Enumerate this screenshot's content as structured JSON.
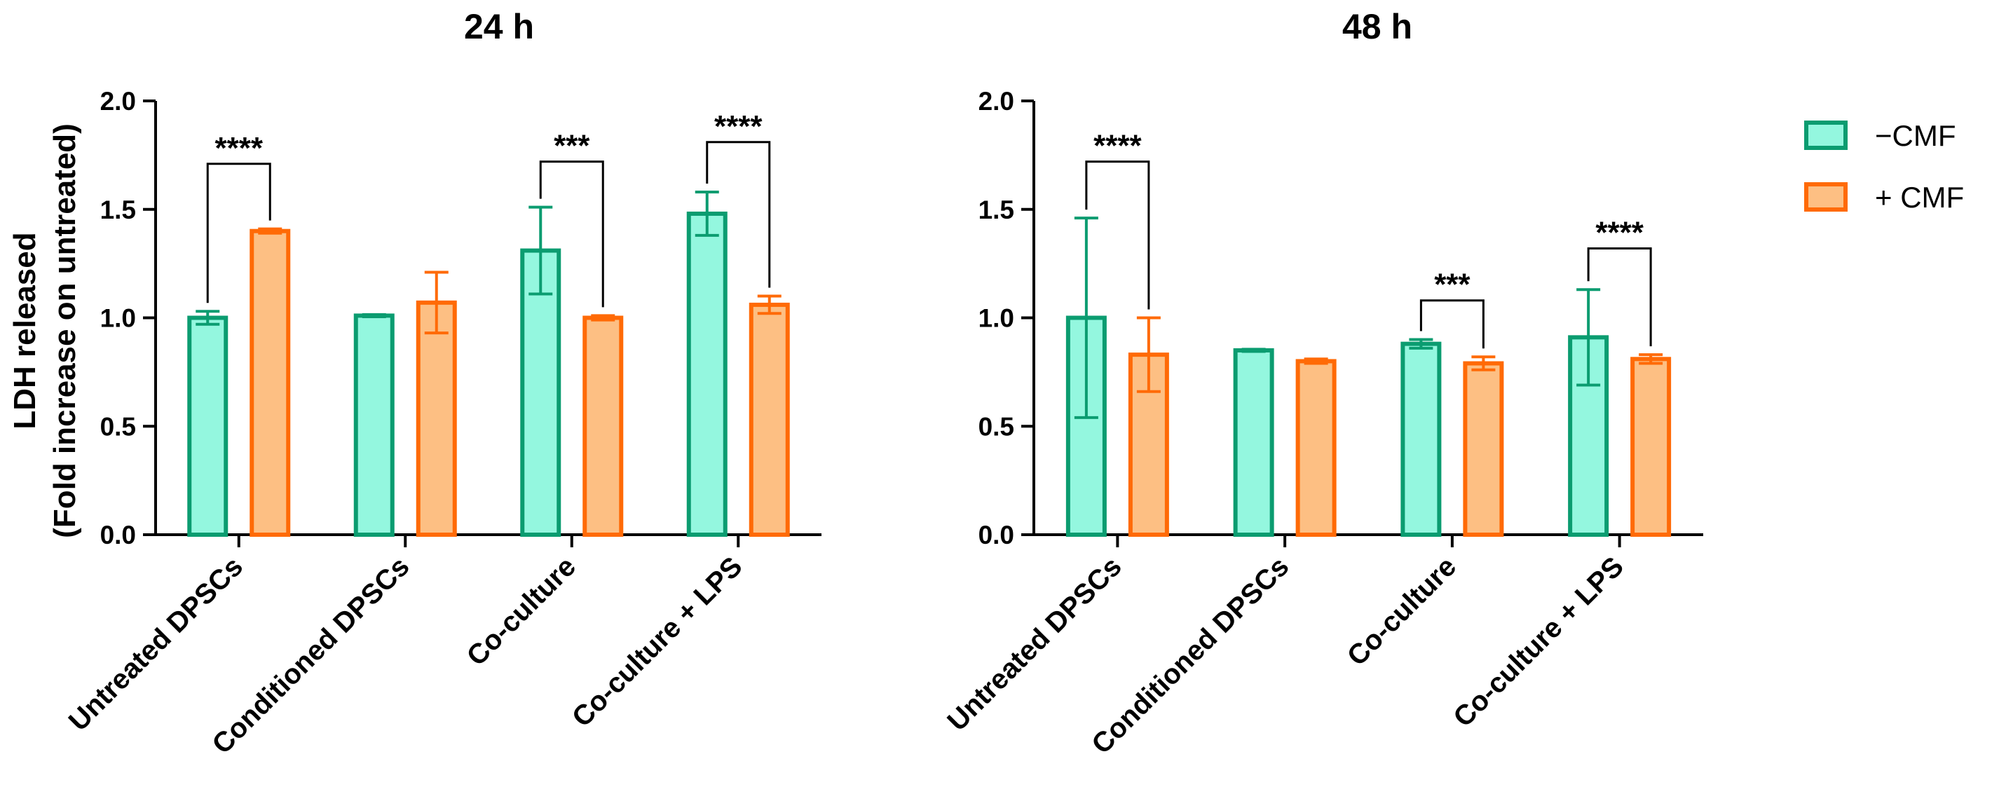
{
  "ylabel_line1": "LDH released",
  "ylabel_line2": "(Fold increase on untreated)",
  "legend": [
    {
      "label": "−CMF",
      "fill": "#94F7DF",
      "stroke": "#0B9C70"
    },
    {
      "label": "+ CMF",
      "fill": "#FDBF83",
      "stroke": "#FF6A06"
    }
  ],
  "chart_data": [
    {
      "type": "bar",
      "title": "24 h",
      "categories": [
        "Untreated DPSCs",
        "Conditioned DPSCs",
        "Co-culture",
        "Co-culture + LPS"
      ],
      "ylim": [
        0,
        2.0
      ],
      "yticks": [
        "0.0",
        "0.5",
        "1.0",
        "1.5",
        "2.0"
      ],
      "series": [
        {
          "name": "−CMF",
          "values": [
            1.0,
            1.01,
            1.31,
            1.48
          ],
          "errors": [
            0.03,
            0.005,
            0.2,
            0.1
          ]
        },
        {
          "name": "+ CMF",
          "values": [
            1.4,
            1.07,
            1.0,
            1.06
          ],
          "errors": [
            0.01,
            0.14,
            0.01,
            0.04
          ]
        }
      ],
      "significance": [
        {
          "category": 0,
          "label": "****",
          "level": 1.71
        },
        {
          "category": 2,
          "label": "***",
          "level": 1.72
        },
        {
          "category": 3,
          "label": "****",
          "level": 1.81
        }
      ]
    },
    {
      "type": "bar",
      "title": "48 h",
      "categories": [
        "Untreated DPSCs",
        "Conditioned DPSCs",
        "Co-culture",
        "Co-culture + LPS"
      ],
      "ylim": [
        0,
        2.0
      ],
      "yticks": [
        "0.0",
        "0.5",
        "1.0",
        "1.5",
        "2.0"
      ],
      "series": [
        {
          "name": "−CMF",
          "values": [
            1.0,
            0.85,
            0.88,
            0.91
          ],
          "errors": [
            0.46,
            0.005,
            0.02,
            0.22
          ]
        },
        {
          "name": "+ CMF",
          "values": [
            0.83,
            0.8,
            0.79,
            0.81
          ],
          "errors": [
            0.17,
            0.01,
            0.03,
            0.02
          ]
        }
      ],
      "significance": [
        {
          "category": 0,
          "label": "****",
          "level": 1.72
        },
        {
          "category": 2,
          "label": "***",
          "level": 1.08
        },
        {
          "category": 3,
          "label": "****",
          "level": 1.32
        }
      ]
    }
  ]
}
